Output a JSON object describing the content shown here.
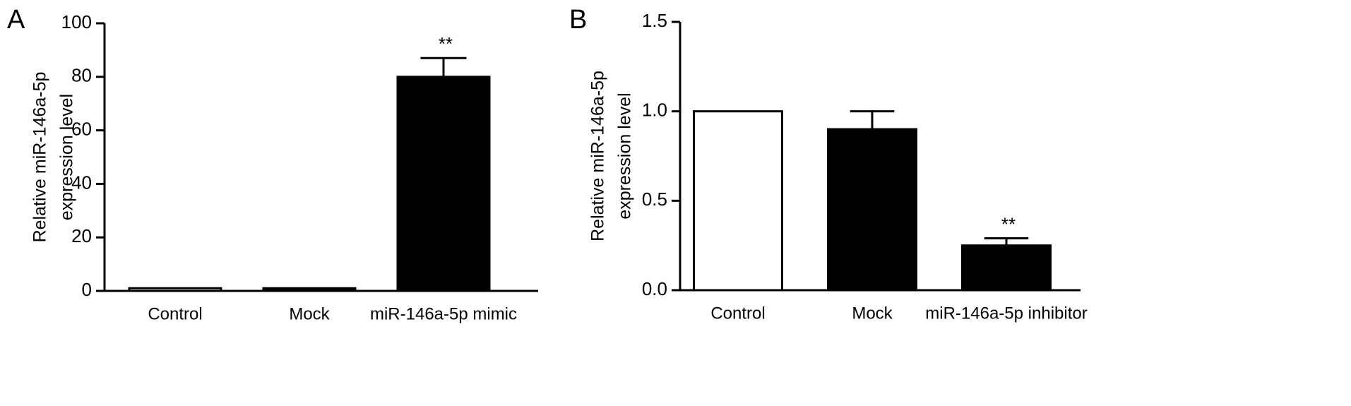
{
  "chart_data": [
    {
      "type": "bar",
      "panel_label": "A",
      "y_label": [
        "Relative miR-146a-5p",
        "expression level"
      ],
      "categories": [
        "Control",
        "Mock",
        "miR-146a-5p mimic"
      ],
      "values": [
        1,
        1,
        80
      ],
      "errors": [
        null,
        null,
        7
      ],
      "value_annotations": [
        null,
        null,
        "**"
      ],
      "colors": [
        "#ffffff",
        "#000000",
        "#000000"
      ],
      "ylim": [
        0,
        100
      ],
      "yticks": [
        0,
        20,
        40,
        60,
        80,
        100
      ]
    },
    {
      "type": "bar",
      "panel_label": "B",
      "y_label": [
        "Relative miR-146a-5p",
        "expression level"
      ],
      "categories": [
        "Control",
        "Mock",
        "miR-146a-5p inhibitor"
      ],
      "values": [
        1,
        0.9,
        0.25
      ],
      "errors": [
        null,
        0.1,
        0.04
      ],
      "value_annotations": [
        null,
        null,
        "**"
      ],
      "colors": [
        "#ffffff",
        "#000000",
        "#000000"
      ],
      "ylim": [
        0,
        1.5
      ],
      "yticks": [
        {
          "value": 0,
          "label": "0.0"
        },
        0.5,
        {
          "value": 1,
          "label": "1.0"
        },
        1.5
      ]
    }
  ]
}
